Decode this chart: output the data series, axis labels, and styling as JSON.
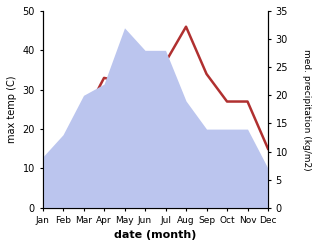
{
  "months": [
    "Jan",
    "Feb",
    "Mar",
    "Apr",
    "May",
    "Jun",
    "Jul",
    "Aug",
    "Sep",
    "Oct",
    "Nov",
    "Dec"
  ],
  "temperature": [
    6,
    13,
    23,
    33,
    32,
    37,
    37,
    46,
    34,
    27,
    27,
    15
  ],
  "precipitation": [
    9,
    13,
    20,
    22,
    32,
    28,
    28,
    19,
    14,
    14,
    14,
    7
  ],
  "temp_ylim": [
    0,
    50
  ],
  "precip_ylim": [
    0,
    35
  ],
  "temp_color": "#b03030",
  "precip_fill_color": "#bbc5ee",
  "xlabel": "date (month)",
  "ylabel_left": "max temp (C)",
  "ylabel_right": "med. precipitation (kg/m2)",
  "bg_color": "#ffffff"
}
